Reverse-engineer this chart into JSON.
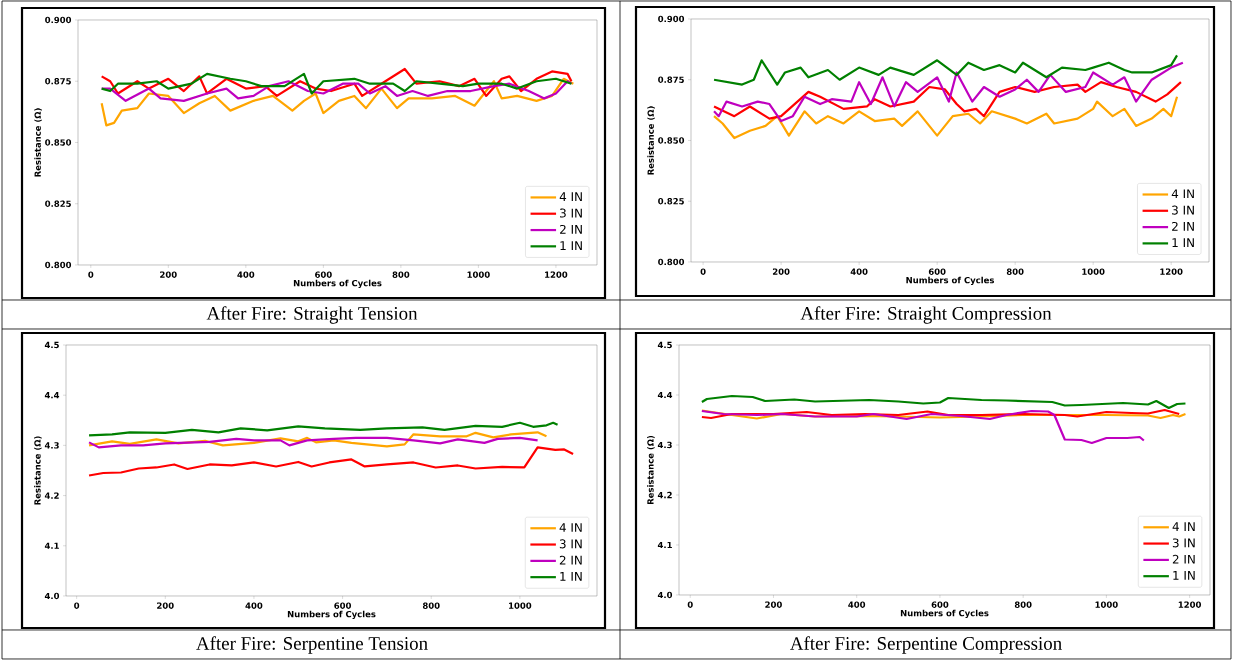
{
  "chart_data": [
    {
      "type": "line",
      "title": "After Fire: Straight Tension",
      "xlabel": "Numbers of Cycles",
      "ylabel": "Resistance (Ω)",
      "legend": "bottom right",
      "xlim": [
        -33,
        1306
      ],
      "ylim": [
        0.8,
        0.9
      ],
      "xticks": [
        0,
        200,
        400,
        600,
        800,
        1000,
        1200
      ],
      "yticks": [
        {
          "value": 0.8,
          "label": "0.800"
        },
        {
          "value": 0.825,
          "label": "0.825"
        },
        {
          "value": 0.85,
          "label": "0.850"
        },
        {
          "value": 0.875,
          "label": "0.875"
        },
        {
          "value": 0.9,
          "label": "0.900"
        }
      ],
      "series": [
        {
          "name": "4 IN",
          "color": "#ffa500",
          "x": [
            28,
            40,
            60,
            80,
            120,
            150,
            200,
            240,
            280,
            320,
            360,
            420,
            470,
            520,
            550,
            580,
            600,
            640,
            680,
            710,
            750,
            790,
            820,
            880,
            940,
            990,
            1020,
            1040,
            1060,
            1100,
            1150,
            1190,
            1220,
            1245
          ],
          "values": [
            0.866,
            0.857,
            0.858,
            0.863,
            0.864,
            0.87,
            0.869,
            0.862,
            0.866,
            0.869,
            0.863,
            0.867,
            0.869,
            0.863,
            0.867,
            0.87,
            0.862,
            0.867,
            0.869,
            0.864,
            0.872,
            0.864,
            0.868,
            0.868,
            0.869,
            0.865,
            0.871,
            0.875,
            0.868,
            0.869,
            0.867,
            0.869,
            0.876,
            0.874
          ]
        },
        {
          "name": "3 IN",
          "color": "#ff0000",
          "x": [
            28,
            50,
            70,
            120,
            150,
            200,
            240,
            280,
            300,
            350,
            400,
            450,
            480,
            540,
            580,
            620,
            680,
            700,
            760,
            810,
            840,
            900,
            950,
            990,
            1020,
            1060,
            1080,
            1110,
            1150,
            1190,
            1230,
            1240
          ],
          "values": [
            0.877,
            0.875,
            0.87,
            0.875,
            0.872,
            0.876,
            0.871,
            0.877,
            0.87,
            0.876,
            0.872,
            0.873,
            0.869,
            0.875,
            0.872,
            0.871,
            0.874,
            0.869,
            0.875,
            0.88,
            0.874,
            0.875,
            0.873,
            0.876,
            0.869,
            0.876,
            0.877,
            0.871,
            0.876,
            0.879,
            0.878,
            0.875
          ]
        },
        {
          "name": "2 IN",
          "color": "#bf00bf",
          "x": [
            28,
            50,
            90,
            150,
            180,
            240,
            300,
            350,
            380,
            420,
            460,
            510,
            560,
            600,
            650,
            690,
            720,
            760,
            790,
            830,
            870,
            920,
            980,
            1040,
            1080,
            1130,
            1170,
            1200,
            1230,
            1240
          ],
          "values": [
            0.872,
            0.872,
            0.867,
            0.872,
            0.868,
            0.867,
            0.87,
            0.872,
            0.868,
            0.869,
            0.873,
            0.875,
            0.871,
            0.87,
            0.874,
            0.874,
            0.87,
            0.873,
            0.869,
            0.871,
            0.869,
            0.871,
            0.871,
            0.873,
            0.874,
            0.871,
            0.868,
            0.87,
            0.875,
            0.874
          ]
        },
        {
          "name": "1 IN",
          "color": "#008000",
          "x": [
            28,
            50,
            70,
            120,
            170,
            200,
            260,
            300,
            360,
            400,
            440,
            500,
            550,
            570,
            600,
            680,
            720,
            780,
            810,
            840,
            900,
            960,
            1000,
            1060,
            1100,
            1150,
            1200,
            1240
          ],
          "values": [
            0.872,
            0.871,
            0.874,
            0.874,
            0.875,
            0.872,
            0.874,
            0.878,
            0.876,
            0.875,
            0.873,
            0.873,
            0.878,
            0.87,
            0.875,
            0.876,
            0.874,
            0.874,
            0.871,
            0.875,
            0.874,
            0.873,
            0.874,
            0.874,
            0.872,
            0.875,
            0.876,
            0.874
          ]
        }
      ]
    },
    {
      "type": "line",
      "title": "After Fire: Straight Compression",
      "xlabel": "Numbers of Cycles",
      "ylabel": "Resistance (Ω)",
      "legend": "bottom right",
      "xlim": [
        -31,
        1297
      ],
      "ylim": [
        0.8,
        0.9
      ],
      "xticks": [
        0,
        200,
        400,
        600,
        800,
        1000,
        1200
      ],
      "yticks": [
        {
          "value": 0.8,
          "label": "0.800"
        },
        {
          "value": 0.825,
          "label": "0.825"
        },
        {
          "value": 0.85,
          "label": "0.850"
        },
        {
          "value": 0.875,
          "label": "0.875"
        },
        {
          "value": 0.9,
          "label": "0.900"
        }
      ],
      "series": [
        {
          "name": "4 IN",
          "color": "#ffa500",
          "x": [
            28,
            50,
            80,
            120,
            160,
            190,
            220,
            260,
            290,
            320,
            360,
            400,
            440,
            490,
            510,
            550,
            600,
            640,
            680,
            710,
            740,
            800,
            830,
            880,
            900,
            960,
            1000,
            1010,
            1050,
            1080,
            1110,
            1150,
            1180,
            1200,
            1215
          ],
          "values": [
            0.86,
            0.857,
            0.851,
            0.854,
            0.856,
            0.86,
            0.852,
            0.862,
            0.857,
            0.86,
            0.857,
            0.862,
            0.858,
            0.859,
            0.856,
            0.862,
            0.852,
            0.86,
            0.861,
            0.857,
            0.862,
            0.859,
            0.857,
            0.861,
            0.857,
            0.859,
            0.863,
            0.866,
            0.86,
            0.863,
            0.856,
            0.859,
            0.863,
            0.86,
            0.868
          ]
        },
        {
          "name": "3 IN",
          "color": "#ff0000",
          "x": [
            28,
            80,
            120,
            170,
            200,
            270,
            300,
            360,
            420,
            440,
            480,
            540,
            580,
            620,
            650,
            670,
            700,
            720,
            760,
            800,
            850,
            900,
            960,
            980,
            1020,
            1060,
            1110,
            1160,
            1190,
            1225
          ],
          "values": [
            0.864,
            0.86,
            0.864,
            0.859,
            0.86,
            0.87,
            0.868,
            0.863,
            0.864,
            0.867,
            0.864,
            0.866,
            0.872,
            0.871,
            0.865,
            0.862,
            0.863,
            0.86,
            0.87,
            0.872,
            0.87,
            0.872,
            0.873,
            0.87,
            0.874,
            0.872,
            0.87,
            0.866,
            0.869,
            0.874
          ]
        },
        {
          "name": "2 IN",
          "color": "#bf00bf",
          "x": [
            28,
            40,
            60,
            100,
            140,
            170,
            200,
            230,
            260,
            300,
            330,
            380,
            400,
            430,
            460,
            490,
            520,
            550,
            600,
            630,
            650,
            690,
            720,
            760,
            800,
            830,
            860,
            890,
            930,
            980,
            1000,
            1050,
            1080,
            1110,
            1150,
            1200,
            1230
          ],
          "values": [
            0.862,
            0.86,
            0.866,
            0.864,
            0.866,
            0.865,
            0.858,
            0.86,
            0.868,
            0.865,
            0.867,
            0.866,
            0.874,
            0.865,
            0.876,
            0.864,
            0.874,
            0.87,
            0.876,
            0.866,
            0.878,
            0.866,
            0.872,
            0.868,
            0.871,
            0.875,
            0.87,
            0.877,
            0.87,
            0.872,
            0.878,
            0.873,
            0.876,
            0.866,
            0.875,
            0.88,
            0.882
          ]
        },
        {
          "name": "1 IN",
          "color": "#008000",
          "x": [
            28,
            100,
            130,
            150,
            190,
            210,
            250,
            270,
            320,
            350,
            400,
            450,
            480,
            540,
            600,
            650,
            680,
            720,
            760,
            800,
            820,
            880,
            920,
            980,
            1000,
            1040,
            1080,
            1100,
            1150,
            1200,
            1215
          ],
          "values": [
            0.875,
            0.873,
            0.875,
            0.883,
            0.873,
            0.878,
            0.88,
            0.876,
            0.879,
            0.875,
            0.88,
            0.877,
            0.88,
            0.877,
            0.883,
            0.877,
            0.882,
            0.879,
            0.881,
            0.878,
            0.882,
            0.876,
            0.88,
            0.879,
            0.88,
            0.882,
            0.879,
            0.878,
            0.878,
            0.881,
            0.885
          ]
        }
      ]
    },
    {
      "type": "line",
      "title": "After Fire: Serpentine Tension",
      "xlabel": "Numbers of Cycles",
      "ylabel": "Resistance (Ω)",
      "legend": "bottom right",
      "xlim": [
        -24,
        1174
      ],
      "ylim": [
        4.0,
        4.5
      ],
      "xticks": [
        0,
        200,
        400,
        600,
        800,
        1000
      ],
      "yticks": [
        {
          "value": 4.0,
          "label": "4.0"
        },
        4.1,
        4.2,
        4.3,
        4.4,
        4.5
      ],
      "series": [
        {
          "name": "4 IN",
          "color": "#ffa500",
          "x": [
            28,
            80,
            120,
            180,
            230,
            290,
            330,
            400,
            460,
            500,
            520,
            540,
            580,
            620,
            700,
            740,
            760,
            820,
            880,
            900,
            940,
            980,
            1040,
            1060
          ],
          "values": [
            4.3,
            4.308,
            4.303,
            4.312,
            4.304,
            4.309,
            4.3,
            4.305,
            4.314,
            4.308,
            4.315,
            4.306,
            4.31,
            4.305,
            4.298,
            4.302,
            4.322,
            4.318,
            4.318,
            4.325,
            4.316,
            4.322,
            4.326,
            4.318
          ]
        },
        {
          "name": "3 IN",
          "color": "#ff0000",
          "x": [
            28,
            60,
            100,
            140,
            180,
            220,
            250,
            300,
            350,
            400,
            450,
            500,
            530,
            570,
            620,
            650,
            700,
            760,
            810,
            860,
            900,
            960,
            1010,
            1040,
            1080,
            1100,
            1120
          ],
          "values": [
            4.24,
            4.245,
            4.246,
            4.254,
            4.256,
            4.262,
            4.253,
            4.262,
            4.26,
            4.266,
            4.258,
            4.267,
            4.258,
            4.266,
            4.272,
            4.258,
            4.262,
            4.266,
            4.256,
            4.26,
            4.254,
            4.257,
            4.256,
            4.296,
            4.291,
            4.292,
            4.283
          ]
        },
        {
          "name": "2 IN",
          "color": "#bf00bf",
          "x": [
            28,
            50,
            100,
            150,
            200,
            300,
            360,
            400,
            460,
            480,
            520,
            580,
            630,
            700,
            760,
            820,
            860,
            920,
            950,
            1000,
            1040
          ],
          "values": [
            4.306,
            4.296,
            4.3,
            4.3,
            4.304,
            4.307,
            4.313,
            4.31,
            4.31,
            4.3,
            4.31,
            4.313,
            4.315,
            4.315,
            4.31,
            4.304,
            4.312,
            4.305,
            4.313,
            4.315,
            4.31
          ]
        },
        {
          "name": "1 IN",
          "color": "#008000",
          "x": [
            28,
            80,
            120,
            200,
            260,
            320,
            370,
            430,
            500,
            560,
            640,
            700,
            780,
            830,
            900,
            960,
            1000,
            1030,
            1060,
            1075,
            1085
          ],
          "values": [
            4.32,
            4.322,
            4.326,
            4.325,
            4.331,
            4.326,
            4.334,
            4.33,
            4.338,
            4.334,
            4.331,
            4.334,
            4.336,
            4.331,
            4.339,
            4.337,
            4.345,
            4.337,
            4.34,
            4.345,
            4.341
          ]
        }
      ]
    },
    {
      "type": "line",
      "title": "After Fire: Serpentine Compression",
      "xlabel": "Numbers of Cycles",
      "ylabel": "Resistance (Ω)",
      "legend": "bottom right",
      "xlim": [
        -27,
        1249
      ],
      "ylim": [
        4.0,
        4.5
      ],
      "xticks": [
        0,
        200,
        400,
        600,
        800,
        1000,
        1200
      ],
      "yticks": [
        {
          "value": 4.0,
          "label": "4.0"
        },
        4.1,
        4.2,
        4.3,
        4.4,
        4.5
      ],
      "series": [
        {
          "name": "4 IN",
          "color": "#ffa500",
          "x": [
            28,
            100,
            160,
            220,
            300,
            400,
            500,
            600,
            700,
            800,
            900,
            1000,
            1100,
            1130,
            1160,
            1175,
            1190
          ],
          "values": [
            4.369,
            4.36,
            4.353,
            4.362,
            4.357,
            4.358,
            4.357,
            4.355,
            4.357,
            4.36,
            4.36,
            4.36,
            4.359,
            4.354,
            4.36,
            4.357,
            4.362
          ]
        },
        {
          "name": "3 IN",
          "color": "#ff0000",
          "x": [
            28,
            50,
            100,
            200,
            280,
            340,
            420,
            500,
            570,
            620,
            700,
            800,
            900,
            930,
            1000,
            1060,
            1100,
            1140,
            1175
          ],
          "values": [
            4.356,
            4.354,
            4.362,
            4.362,
            4.366,
            4.36,
            4.362,
            4.36,
            4.367,
            4.36,
            4.36,
            4.362,
            4.36,
            4.357,
            4.366,
            4.364,
            4.363,
            4.37,
            4.362
          ]
        },
        {
          "name": "2 IN",
          "color": "#bf00bf",
          "x": [
            28,
            80,
            160,
            220,
            300,
            400,
            440,
            520,
            580,
            650,
            720,
            760,
            820,
            860,
            875,
            900,
            940,
            965,
            1000,
            1050,
            1080,
            1090
          ],
          "values": [
            4.368,
            4.362,
            4.36,
            4.362,
            4.357,
            4.357,
            4.362,
            4.352,
            4.362,
            4.358,
            4.352,
            4.36,
            4.368,
            4.367,
            4.36,
            4.311,
            4.31,
            4.304,
            4.314,
            4.314,
            4.316,
            4.309
          ]
        },
        {
          "name": "1 IN",
          "color": "#008000",
          "x": [
            28,
            40,
            100,
            150,
            180,
            250,
            300,
            430,
            500,
            560,
            600,
            620,
            700,
            760,
            870,
            900,
            940,
            1040,
            1100,
            1120,
            1150,
            1170,
            1190
          ],
          "values": [
            4.386,
            4.392,
            4.398,
            4.396,
            4.388,
            4.391,
            4.387,
            4.39,
            4.387,
            4.383,
            4.385,
            4.394,
            4.39,
            4.389,
            4.386,
            4.379,
            4.38,
            4.384,
            4.381,
            4.388,
            4.374,
            4.382,
            4.383
          ]
        }
      ]
    }
  ]
}
